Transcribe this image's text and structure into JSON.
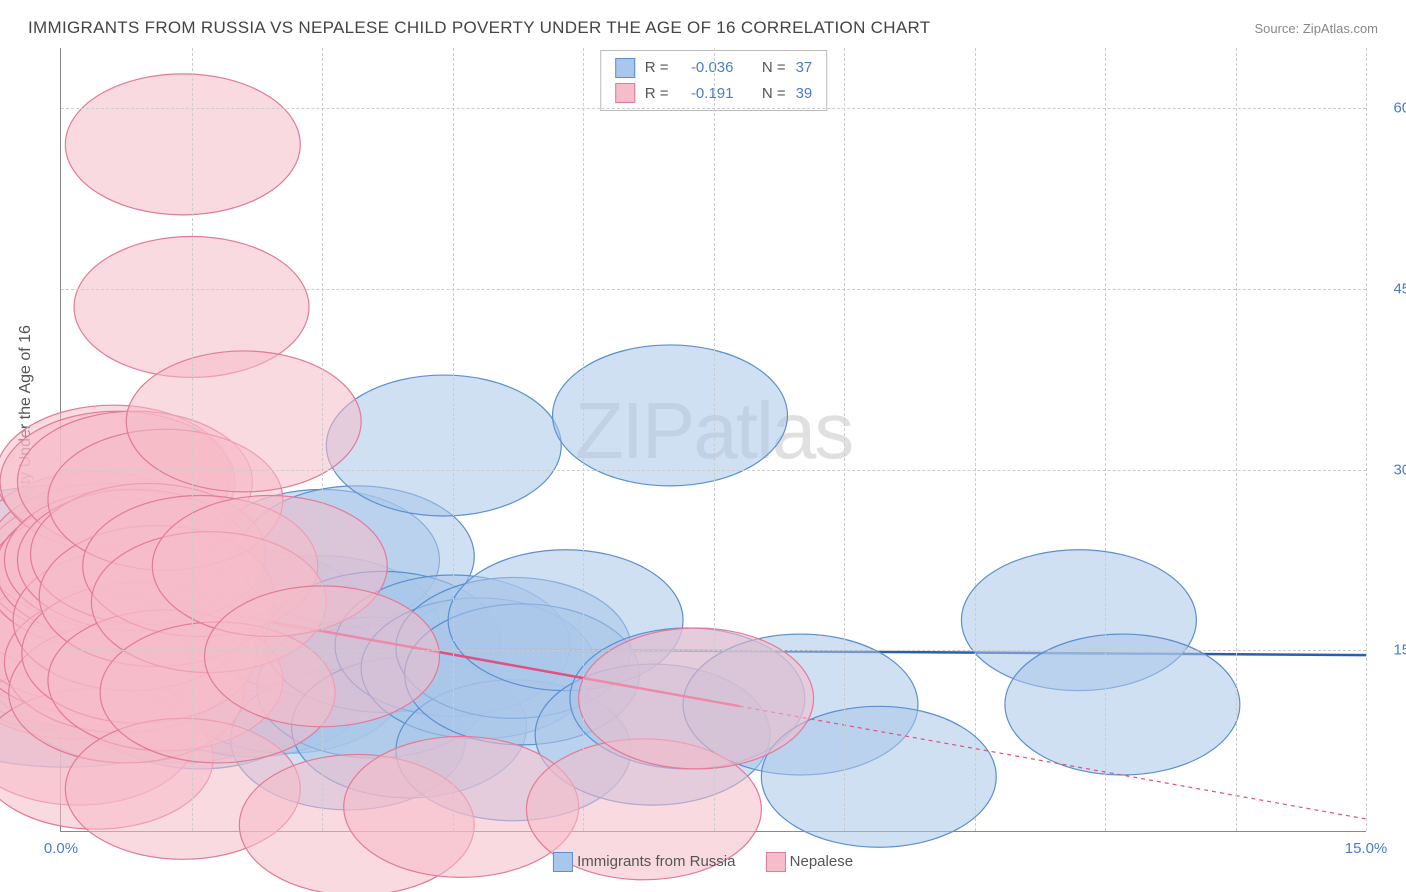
{
  "title": "IMMIGRANTS FROM RUSSIA VS NEPALESE CHILD POVERTY UNDER THE AGE OF 16 CORRELATION CHART",
  "source": "Source: ZipAtlas.com",
  "y_axis_label": "Child Poverty Under the Age of 16",
  "watermark_bold": "ZIP",
  "watermark_thin": "atlas",
  "legend_top": {
    "rows": [
      {
        "r_label": "R =",
        "r_value": "-0.036",
        "n_label": "N =",
        "n_value": "37",
        "swatch_fill": "#a9c7ea",
        "swatch_stroke": "#5b8fd0"
      },
      {
        "r_label": "R =",
        "r_value": "-0.191",
        "n_label": "N =",
        "n_value": "39",
        "swatch_fill": "#f5bcc9",
        "swatch_stroke": "#e27a98"
      }
    ]
  },
  "legend_bottom": {
    "items": [
      {
        "label": "Immigrants from Russia",
        "swatch_fill": "#a9c7ea",
        "swatch_stroke": "#5b8fd0"
      },
      {
        "label": "Nepalese",
        "swatch_fill": "#f5bcc9",
        "swatch_stroke": "#e27a98"
      }
    ]
  },
  "chart": {
    "type": "scatter",
    "xlim": [
      0,
      15
    ],
    "ylim": [
      0,
      65
    ],
    "x_ticks": [
      0,
      15
    ],
    "y_ticks": [
      15,
      30,
      45,
      60
    ],
    "x_tick_labels": [
      "0.0%",
      "15.0%"
    ],
    "y_tick_labels": [
      "15.0%",
      "30.0%",
      "45.0%",
      "60.0%"
    ],
    "x_gridlines": [
      1.5,
      3.0,
      4.5,
      6.0,
      7.5,
      9.0,
      10.5,
      12.0,
      13.5,
      15.0
    ],
    "background_color": "#ffffff",
    "grid_color": "#cccccc",
    "marker_radius": 9,
    "marker_radius_large": 18,
    "series": [
      {
        "name": "russia",
        "fill": "#a9c7ea",
        "stroke": "#5b8fd0",
        "fill_opacity": 0.55,
        "trend": {
          "y1": 15.3,
          "y2": 14.6,
          "color": "#2a5fb0",
          "width": 2.5,
          "solid_x_end": 15.0
        },
        "points": [
          [
            0.05,
            17.0,
            18
          ],
          [
            0.1,
            14.0
          ],
          [
            0.3,
            17.0
          ],
          [
            0.3,
            18.5
          ],
          [
            0.4,
            14.2
          ],
          [
            0.5,
            13.5
          ],
          [
            0.8,
            11.5
          ],
          [
            1.2,
            15.2
          ],
          [
            1.3,
            12.5
          ],
          [
            1.4,
            11.5
          ],
          [
            1.6,
            11.0
          ],
          [
            2.0,
            12.3
          ],
          [
            2.1,
            14.8
          ],
          [
            2.2,
            17.5
          ],
          [
            2.2,
            12.0
          ],
          [
            2.6,
            12.3
          ],
          [
            3.0,
            17.0
          ],
          [
            3.0,
            22.5
          ],
          [
            3.3,
            7.6
          ],
          [
            3.4,
            22.8
          ],
          [
            3.6,
            11.9
          ],
          [
            3.7,
            15.7
          ],
          [
            4.0,
            8.6
          ],
          [
            4.4,
            32.0
          ],
          [
            4.5,
            15.4
          ],
          [
            4.8,
            13.5
          ],
          [
            5.2,
            6.7
          ],
          [
            5.2,
            15.2
          ],
          [
            5.3,
            13.0
          ],
          [
            5.8,
            17.5
          ],
          [
            6.8,
            8.0
          ],
          [
            7.0,
            34.5
          ],
          [
            7.2,
            11.0
          ],
          [
            8.5,
            10.5
          ],
          [
            9.4,
            4.5
          ],
          [
            11.7,
            17.5
          ],
          [
            12.2,
            10.5
          ]
        ]
      },
      {
        "name": "nepalese",
        "fill": "#f5bcc9",
        "stroke": "#e27a98",
        "fill_opacity": 0.55,
        "trend": {
          "y1": 20.5,
          "y2": 1.0,
          "color": "#e05080",
          "width": 2.5,
          "solid_x_end": 7.8
        },
        "points": [
          [
            0.1,
            16.0
          ],
          [
            0.15,
            14.5
          ],
          [
            0.15,
            13.5
          ],
          [
            0.2,
            8.0
          ],
          [
            0.25,
            19.0
          ],
          [
            0.3,
            16.5
          ],
          [
            0.35,
            15.5
          ],
          [
            0.4,
            6.0
          ],
          [
            0.4,
            24.0
          ],
          [
            0.45,
            22.0
          ],
          [
            0.5,
            23.0
          ],
          [
            0.5,
            21.0
          ],
          [
            0.6,
            29.5
          ],
          [
            0.6,
            21.8
          ],
          [
            0.65,
            29.0
          ],
          [
            0.7,
            22.5
          ],
          [
            0.7,
            14.0
          ],
          [
            0.75,
            11.5
          ],
          [
            0.8,
            17.5
          ],
          [
            0.85,
            29.0
          ],
          [
            0.85,
            22.5
          ],
          [
            0.9,
            14.8
          ],
          [
            1.0,
            23.0
          ],
          [
            1.1,
            19.5
          ],
          [
            1.2,
            27.5
          ],
          [
            1.2,
            12.5
          ],
          [
            1.4,
            57.0
          ],
          [
            1.4,
            3.5
          ],
          [
            1.5,
            43.5
          ],
          [
            1.6,
            22.0
          ],
          [
            1.7,
            19.0
          ],
          [
            1.8,
            11.5
          ],
          [
            2.1,
            34.0
          ],
          [
            2.4,
            22.0
          ],
          [
            3.0,
            14.5
          ],
          [
            3.4,
            0.5
          ],
          [
            4.6,
            2.0
          ],
          [
            6.7,
            1.8
          ],
          [
            7.3,
            11.0
          ]
        ]
      }
    ]
  }
}
